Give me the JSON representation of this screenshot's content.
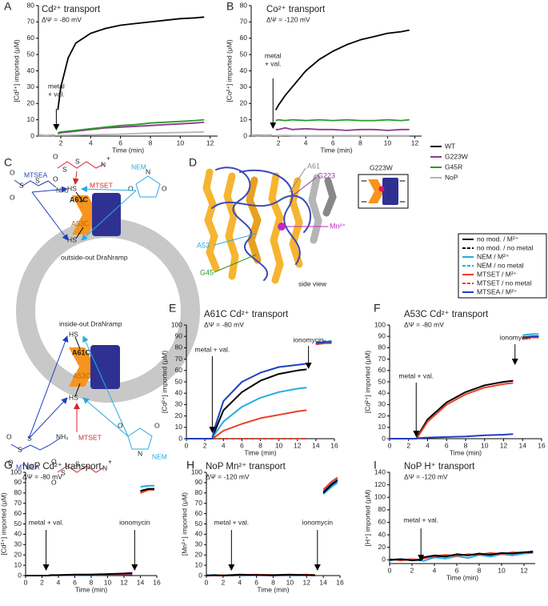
{
  "panel_labels": [
    "A",
    "B",
    "C",
    "D",
    "E",
    "F",
    "G",
    "H",
    "I"
  ],
  "chart_data": [
    {
      "type": "line",
      "title": "Cd²⁺ transport",
      "subtitle": "ΔΨ = -80 mV",
      "xlabel": "Time (min)",
      "ylabel": "[Cd²⁺] imported (μM)",
      "x": [
        0.5,
        1,
        1.6,
        1.7,
        1.8,
        2,
        2.5,
        3,
        4,
        5,
        6,
        7,
        8,
        9,
        10,
        11,
        11.6
      ],
      "xlim": [
        0.5,
        12.5
      ],
      "xticks": [
        2,
        4,
        6,
        8,
        10,
        12
      ],
      "ylim": [
        0,
        80
      ],
      "yticks": [
        0,
        10,
        20,
        30,
        40,
        50,
        60,
        70,
        80
      ],
      "legend": true,
      "series": [
        {
          "name": "WT",
          "color": "#000000",
          "values": [
            0.5,
            0.3,
            0.5,
            null,
            16,
            30,
            48,
            57,
            63,
            66,
            68,
            69,
            70,
            71,
            72,
            72.5,
            73
          ]
        },
        {
          "name": "G223W",
          "color": "#8e3a8e",
          "values": [
            0.5,
            0.3,
            0.5,
            null,
            1.5,
            2,
            2.5,
            3,
            4,
            5,
            5.5,
            6,
            6.5,
            7,
            7.5,
            8,
            8.5
          ]
        },
        {
          "name": "G45R",
          "color": "#2a9a2a",
          "values": [
            0.5,
            0.3,
            0.5,
            null,
            2,
            2.5,
            3,
            3.5,
            4.5,
            5.5,
            6.5,
            7,
            8,
            8.5,
            9,
            9.5,
            10
          ]
        },
        {
          "name": "NoP",
          "color": "#b3b3b3",
          "values": [
            0.3,
            0.5,
            0.3,
            null,
            0.5,
            0.5,
            0.5,
            0.6,
            0.8,
            1,
            1.2,
            1.5,
            1.8,
            2,
            2.2,
            2.4,
            2.5
          ]
        }
      ],
      "annotations": [
        {
          "text": [
            "metal",
            "+ val."
          ],
          "x": 1.7
        }
      ]
    },
    {
      "type": "line",
      "title": "Co²⁺ transport",
      "subtitle": "ΔΨ = -120 mV",
      "xlabel": "Time (min)",
      "ylabel": "[Co²⁺] imported (μM)",
      "x": [
        0,
        0.5,
        1,
        1.5,
        1.7,
        1.8,
        2,
        2.5,
        3,
        4,
        5,
        6,
        7,
        8,
        9,
        10,
        11,
        11.6
      ],
      "xlim": [
        0,
        12.5
      ],
      "xticks": [
        2,
        4,
        6,
        8,
        10,
        12
      ],
      "ylim": [
        0,
        80
      ],
      "yticks": [
        0,
        10,
        20,
        30,
        40,
        50,
        60,
        70,
        80
      ],
      "series": [
        {
          "color": "#000000",
          "values": [
            0.5,
            0.3,
            0.5,
            0.3,
            null,
            16,
            19,
            25,
            30,
            40,
            47,
            52,
            56,
            59,
            61,
            63,
            64,
            65
          ]
        },
        {
          "color": "#8e3a8e",
          "values": [
            0.5,
            0.5,
            0.3,
            0.5,
            null,
            4,
            4,
            5,
            4,
            4.5,
            4,
            4,
            3.5,
            4,
            4,
            3.5,
            4,
            4
          ]
        },
        {
          "color": "#2a9a2a",
          "values": [
            0.5,
            0.5,
            0.5,
            0.5,
            null,
            9.5,
            10,
            9.5,
            10,
            9.5,
            10,
            9.5,
            10,
            9.5,
            9.5,
            10,
            9.5,
            10
          ]
        },
        {
          "color": "#b3b3b3",
          "values": [
            0.5,
            0.3,
            0.5,
            0.3,
            null,
            0.5,
            0.3,
            0.5,
            0.3,
            0.3,
            0.3,
            0.3,
            0.3,
            0.3,
            0.3,
            0.3,
            0.3,
            0.3
          ]
        }
      ],
      "annotations": [
        {
          "text": [
            "metal",
            "+ val."
          ],
          "x": 1.6
        }
      ]
    },
    {
      "type": "line",
      "title": "A61C Cd²⁺ transport",
      "subtitle": "ΔΨ = -80 mV",
      "xlabel": "Time (min)",
      "ylabel": "[Cd²⁺] imported (μM)",
      "x": [
        0,
        1,
        2,
        2.8,
        3,
        4,
        6,
        8,
        10,
        12,
        13,
        13.5,
        14,
        15,
        15.7
      ],
      "xlim": [
        0,
        16
      ],
      "xticks": [
        0,
        2,
        4,
        6,
        8,
        10,
        12,
        14,
        16
      ],
      "ylim": [
        0,
        100
      ],
      "yticks": [
        0,
        10,
        20,
        30,
        40,
        50,
        60,
        70,
        80,
        90,
        100
      ],
      "legend": true,
      "series": [
        {
          "name": "no mod. / M²⁺",
          "color": "#000000",
          "dash": false,
          "values": [
            0,
            0,
            0,
            0,
            5,
            25,
            41,
            51,
            57,
            60,
            61,
            null,
            83,
            85,
            85
          ]
        },
        {
          "name": "no mod. / no metal",
          "color": "#000000",
          "dash": true,
          "values": [
            0,
            0,
            0,
            0,
            0,
            0,
            0,
            0,
            0,
            0,
            0,
            null,
            84,
            85,
            85
          ]
        },
        {
          "name": "NEM / M²⁺",
          "color": "#29abe2",
          "dash": false,
          "values": [
            0,
            0,
            0,
            0,
            3,
            15,
            28,
            36,
            41,
            44,
            45,
            null,
            84,
            85,
            86
          ]
        },
        {
          "name": "NEM / no metal",
          "color": "#29abe2",
          "dash": true,
          "values": [
            0,
            0,
            0,
            0,
            0,
            0,
            0,
            0,
            0,
            0,
            0,
            null,
            85,
            86,
            86
          ]
        },
        {
          "name": "MTSET / M²⁺",
          "color": "#e8402a",
          "dash": false,
          "values": [
            0,
            0,
            0,
            0,
            1,
            7,
            13,
            18,
            21,
            24,
            25,
            null,
            83,
            84,
            84
          ]
        },
        {
          "name": "MTSET / no metal",
          "color": "#e8402a",
          "dash": true,
          "values": [
            0,
            0,
            0,
            0,
            0,
            0,
            0,
            0,
            0,
            0,
            0,
            null,
            84,
            85,
            85
          ]
        },
        {
          "name": "MTSEA / M²⁺",
          "color": "#1f3fbf",
          "dash": false,
          "values": [
            0,
            0,
            0,
            0,
            8,
            33,
            50,
            58,
            63,
            65,
            66,
            null,
            84,
            85,
            85
          ]
        }
      ],
      "annotations": [
        {
          "text": [
            "metal + val."
          ],
          "x": 2.8
        },
        {
          "text": [
            "ionomycin"
          ],
          "x": 13.2
        }
      ]
    },
    {
      "type": "line",
      "title": "A53C Cd²⁺ transport",
      "subtitle": "ΔΨ = -80 mV",
      "xlabel": "Time (min)",
      "ylabel": "[Cd²⁺] imported (μM)",
      "x": [
        0,
        1,
        2,
        2.8,
        3,
        4,
        6,
        8,
        10,
        12,
        13,
        13.5,
        14,
        15,
        15.7
      ],
      "xlim": [
        0,
        16
      ],
      "xticks": [
        0,
        2,
        4,
        6,
        8,
        10,
        12,
        14,
        16
      ],
      "ylim": [
        0,
        100
      ],
      "yticks": [
        0,
        10,
        20,
        30,
        40,
        50,
        60,
        70,
        80,
        90,
        100
      ],
      "series": [
        {
          "color": "#29abe2",
          "values": [
            null,
            null,
            null,
            null,
            null,
            null,
            null,
            null,
            null,
            null,
            null,
            null,
            91,
            92,
            92
          ]
        },
        {
          "color": "#000000",
          "values": [
            0,
            0,
            0,
            0,
            3,
            17,
            32,
            41,
            47,
            50,
            51,
            null,
            89,
            90,
            90
          ]
        },
        {
          "color": "#e8402a",
          "values": [
            0,
            0,
            0,
            0,
            2,
            15,
            30,
            39,
            45,
            48,
            49,
            null,
            88,
            89,
            89
          ]
        },
        {
          "color": "#1f3fbf",
          "values": [
            0,
            0,
            0,
            0,
            0.5,
            1,
            1.5,
            2,
            3,
            3.5,
            4,
            null,
            89,
            90,
            90
          ]
        }
      ],
      "annotations": [
        {
          "text": [
            "metal + val."
          ],
          "x": 2.8
        },
        {
          "text": [
            "ionomycin"
          ],
          "x": 13.2
        }
      ]
    },
    {
      "type": "line",
      "title": "NoP Cd²⁺ transport",
      "subtitle": "ΔΨ = -80 mV",
      "xlabel": "Time (min)",
      "ylabel": "[Cd²⁺] imported (μM)",
      "x": [
        0,
        1,
        2,
        2.8,
        3,
        4,
        6,
        8,
        10,
        12,
        13,
        13.5,
        14,
        15,
        15.7
      ],
      "xlim": [
        0,
        16
      ],
      "xticks": [
        0,
        2,
        4,
        6,
        8,
        10,
        12,
        14,
        16
      ],
      "ylim": [
        0,
        100
      ],
      "yticks": [
        0,
        10,
        20,
        30,
        40,
        50,
        60,
        70,
        80,
        90,
        100
      ],
      "series": [
        {
          "color": "#29abe2",
          "values": [
            0,
            0,
            0,
            0,
            0.3,
            0.3,
            0.5,
            0.6,
            0.8,
            1,
            1.2,
            null,
            86,
            87,
            87
          ]
        },
        {
          "color": "#1f3fbf",
          "values": [
            0,
            0,
            0,
            0,
            0.3,
            0.3,
            0.5,
            0.5,
            0.8,
            1,
            1,
            null,
            81,
            83,
            84
          ]
        },
        {
          "color": "#e8402a",
          "values": [
            0,
            0,
            0,
            0,
            0.3,
            0.5,
            0.8,
            1,
            1.2,
            1.5,
            2,
            null,
            80,
            83,
            83
          ]
        },
        {
          "color": "#000000",
          "values": [
            0,
            0,
            0,
            0,
            0.5,
            0.5,
            1,
            1,
            1.5,
            2,
            2.5,
            null,
            82,
            84,
            84
          ]
        }
      ],
      "annotations": [
        {
          "text": [
            "metal + val."
          ],
          "x": 2.5
        },
        {
          "text": [
            "ionomycin"
          ],
          "x": 13.3
        }
      ]
    },
    {
      "type": "line",
      "title": "NoP Mn²⁺ transport",
      "subtitle": "ΔΨ = -120 mV",
      "xlabel": "Time (min)",
      "ylabel": "[Mn²⁺] imported (μM)",
      "x": [
        0,
        1,
        2,
        2.8,
        3,
        4,
        6,
        8,
        10,
        12,
        13,
        13.5,
        14,
        15,
        15.7
      ],
      "xlim": [
        0,
        16
      ],
      "xticks": [
        0,
        2,
        4,
        6,
        8,
        10,
        12,
        14,
        16
      ],
      "ylim": [
        0,
        100
      ],
      "yticks": [
        0,
        10,
        20,
        30,
        40,
        50,
        60,
        70,
        80,
        90,
        100
      ],
      "series": [
        {
          "color": "#29abe2",
          "values": [
            0,
            0.5,
            0,
            0,
            0.5,
            0,
            0.5,
            0.5,
            0,
            0.5,
            0.5,
            null,
            79,
            86,
            90
          ]
        },
        {
          "color": "#1f3fbf",
          "values": [
            0.5,
            0,
            0,
            0.5,
            0,
            0.5,
            0.5,
            0,
            0.5,
            0.5,
            0,
            null,
            81,
            89,
            93
          ]
        },
        {
          "color": "#e8402a",
          "values": [
            0,
            0,
            0.5,
            0,
            0.5,
            0.5,
            1,
            0.5,
            0.5,
            1,
            0.5,
            null,
            83,
            91,
            95
          ]
        },
        {
          "color": "#000000",
          "values": [
            0,
            0.5,
            0,
            0.5,
            0.5,
            1,
            0.5,
            0.5,
            1,
            0.5,
            0.5,
            null,
            80,
            88,
            92
          ]
        }
      ],
      "annotations": [
        {
          "text": [
            "metal + val."
          ],
          "x": 3
        },
        {
          "text": [
            "ionomycin"
          ],
          "x": 13.3
        }
      ]
    },
    {
      "type": "line",
      "title": "NoP H⁺ transport",
      "subtitle": "ΔΨ = -120 mV",
      "xlabel": "Time (min)",
      "ylabel": "[H⁺] imported (μM)",
      "x": [
        0,
        1,
        2,
        2.8,
        3,
        4,
        5,
        6,
        7,
        8,
        9,
        10,
        11,
        12,
        12.8
      ],
      "xlim": [
        0,
        13
      ],
      "xticks": [
        0,
        2,
        4,
        6,
        8,
        10,
        12
      ],
      "ylim": [
        -6,
        140
      ],
      "yticks": [
        0,
        20,
        40,
        60,
        80,
        100,
        120,
        140
      ],
      "series": [
        {
          "color": "#29abe2",
          "values": [
            -1,
            1,
            0,
            1,
            -2,
            4,
            2,
            6,
            3,
            8,
            5,
            9,
            7,
            10,
            11
          ]
        },
        {
          "color": "#1f3fbf",
          "values": [
            0,
            0,
            1,
            -1,
            3,
            5,
            6,
            8,
            8,
            9,
            10,
            10,
            11,
            12,
            12
          ]
        },
        {
          "color": "#e8402a",
          "values": [
            1,
            -1,
            1,
            0,
            2,
            6,
            8,
            6,
            9,
            8,
            11,
            9,
            12,
            11,
            14
          ]
        },
        {
          "color": "#000000",
          "values": [
            0,
            1,
            -1,
            0,
            4,
            7,
            5,
            9,
            7,
            10,
            8,
            11,
            10,
            12,
            13
          ]
        }
      ],
      "annotations": [
        {
          "text": [
            "metal + val."
          ],
          "x": 2.8
        }
      ]
    }
  ],
  "diagram_c": {
    "top_label": "outside-out DraNramp",
    "bottom_label": "inside-out DraNramp",
    "reagents": {
      "mtsea": "MTSEA",
      "mtset": "MTSET",
      "nem": "NEM"
    },
    "thiol": "HS",
    "residues": [
      "A61C",
      "A53C"
    ],
    "atoms": {
      "s": "S",
      "o": "O",
      "n": "N",
      "nh2": "NH₂",
      "plus": "+"
    }
  },
  "structure_d": {
    "labels": {
      "a61": "A61",
      "g223": "G223",
      "mn": "Mn²⁺",
      "a53": "A53",
      "g45": "G45"
    },
    "view": "side view",
    "inset_title": "G223W"
  }
}
